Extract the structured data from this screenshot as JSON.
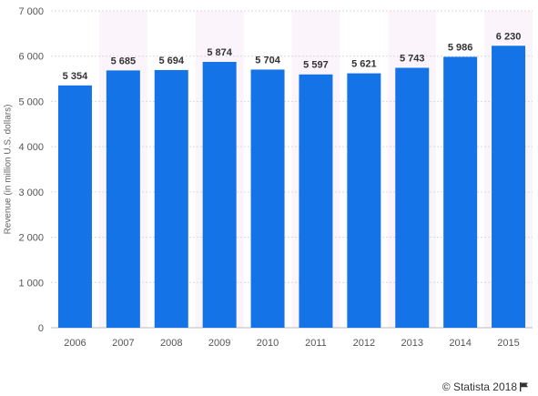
{
  "chart_data": {
    "type": "bar",
    "categories": [
      "2006",
      "2007",
      "2008",
      "2009",
      "2010",
      "2011",
      "2012",
      "2013",
      "2014",
      "2015"
    ],
    "values": [
      5354,
      5685,
      5694,
      5874,
      5704,
      5597,
      5621,
      5743,
      5986,
      6230
    ],
    "data_labels": [
      "5 354",
      "5 685",
      "5 694",
      "5 874",
      "5 704",
      "5 597",
      "5 621",
      "5 743",
      "5 986",
      "6 230"
    ],
    "ylabel": "Revenue (in million U.S. dollars)",
    "ylim": [
      0,
      7000
    ],
    "yticks": [
      0,
      1000,
      2000,
      3000,
      4000,
      5000,
      6000,
      7000
    ],
    "ytick_labels": [
      "0",
      "1 000",
      "2 000",
      "3 000",
      "4 000",
      "5 000",
      "6 000",
      "7 000"
    ],
    "grid": true,
    "colors": {
      "bar": "#1473e6",
      "grid": "#d9d9d9",
      "band": "#fbf5fb"
    }
  },
  "footer": {
    "credit": "© Statista 2018",
    "flag_icon": "flag-icon"
  }
}
